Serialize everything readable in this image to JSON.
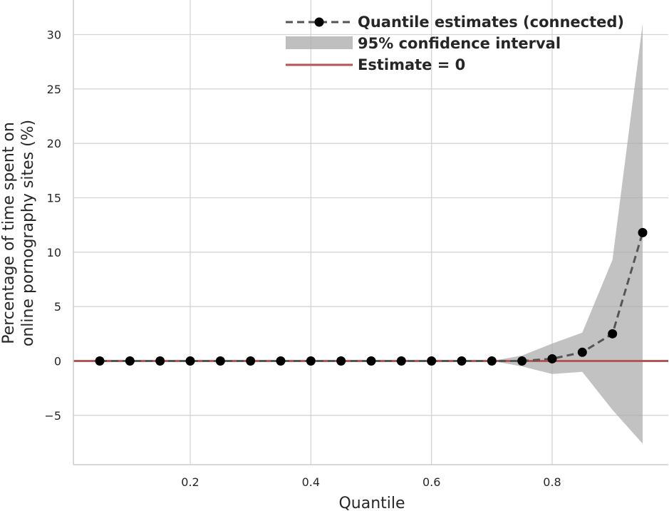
{
  "chart_data": {
    "type": "line",
    "title": "",
    "xlabel": "Quantile",
    "ylabel_line1": "Percentage of time spent on",
    "ylabel_line2": "online pornography sites (%)",
    "xlim": [
      0.0,
      0.985
    ],
    "ylim": [
      -9.5,
      33
    ],
    "x_ticks": [
      0.2,
      0.4,
      0.6,
      0.8
    ],
    "x_tick_labels": [
      "0.2",
      "0.4",
      "0.6",
      "0.8"
    ],
    "y_ticks": [
      -5,
      0,
      5,
      10,
      15,
      20,
      25,
      30
    ],
    "y_tick_labels": [
      "−5",
      "0",
      "5",
      "10",
      "15",
      "20",
      "25",
      "30"
    ],
    "grid": true,
    "legend_position": "top-right",
    "series": [
      {
        "name": "Quantile estimates (connected)",
        "style": "dashed-with-markers",
        "color": "#555555",
        "marker_color": "#000000",
        "x": [
          0.05,
          0.1,
          0.15,
          0.2,
          0.25,
          0.3,
          0.35,
          0.4,
          0.45,
          0.5,
          0.55,
          0.6,
          0.65,
          0.7,
          0.75,
          0.8,
          0.85,
          0.9,
          0.95
        ],
        "y": [
          0,
          0,
          0,
          0,
          0,
          0,
          0,
          0,
          0,
          0,
          0,
          0,
          0,
          0,
          0.0,
          0.2,
          0.8,
          2.5,
          11.8
        ]
      },
      {
        "name": "95% confidence interval",
        "style": "band",
        "color": "#aaaaaa",
        "x": [
          0.05,
          0.1,
          0.15,
          0.2,
          0.25,
          0.3,
          0.35,
          0.4,
          0.45,
          0.5,
          0.55,
          0.6,
          0.65,
          0.7,
          0.75,
          0.8,
          0.85,
          0.9,
          0.95
        ],
        "lower": [
          0,
          0,
          0,
          0,
          0,
          0,
          0,
          0,
          0,
          0,
          0,
          0,
          0,
          0,
          -0.5,
          -1.2,
          -1.0,
          -4.5,
          -7.6
        ],
        "upper": [
          0,
          0,
          0,
          0,
          0,
          0,
          0,
          0,
          0,
          0,
          0,
          0,
          0,
          0,
          0.5,
          1.6,
          2.6,
          9.3,
          31.0
        ]
      },
      {
        "name": "Estimate = 0",
        "style": "hline",
        "color": "#b55555",
        "y": 0
      }
    ]
  }
}
